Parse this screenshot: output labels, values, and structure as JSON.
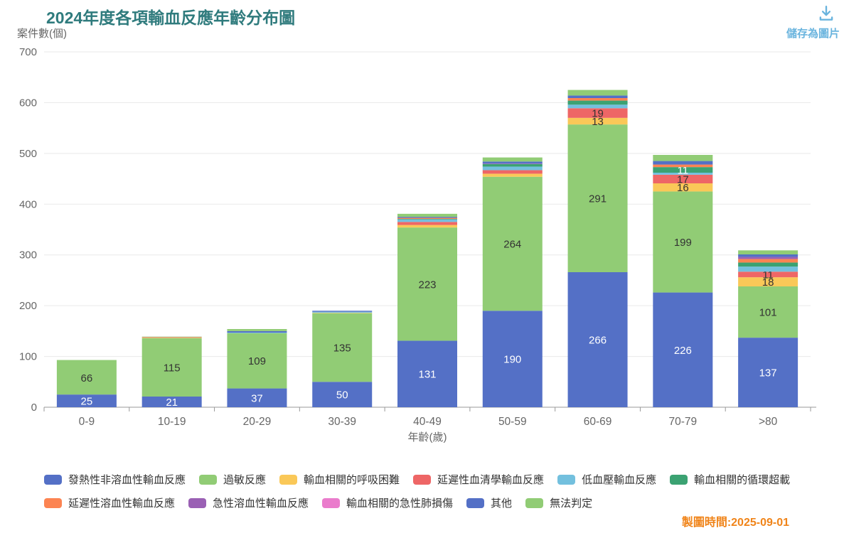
{
  "header": {
    "title": "2024年度各項輸血反應年齡分布圖",
    "save_button_label": "儲存為圖片",
    "timestamp_label": "製圖時間:",
    "timestamp_value": "2025-09-01"
  },
  "colors": {
    "title": "#2f7b7d",
    "save": "#6ab4de",
    "timestamp": "#f08419",
    "axis_text": "#666666",
    "grid_line": "#e9e9e9",
    "axis_line": "#999999",
    "bar_label_dark": "#333333",
    "bar_label_light": "#ffffff"
  },
  "chart_data": {
    "type": "bar",
    "stacked": true,
    "title": "2024年度各項輸血反應年齡分布圖",
    "xlabel": "年齡(歲)",
    "ylabel": "案件數(個)",
    "ylim": [
      0,
      700
    ],
    "ytick_interval": 100,
    "grid": true,
    "legend_position": "bottom",
    "categories": [
      "0-9",
      "10-19",
      "20-29",
      "30-39",
      "40-49",
      "50-59",
      "60-69",
      "70-79",
      ">80"
    ],
    "series": [
      {
        "name": "發熱性非溶血性輸血反應",
        "color": "#5470c6",
        "label_text": "#ffffff",
        "show_labels": true,
        "values": [
          25,
          21,
          37,
          50,
          131,
          190,
          266,
          226,
          137
        ]
      },
      {
        "name": "過敏反應",
        "color": "#91cc75",
        "label_text": "#333333",
        "show_labels": true,
        "values": [
          66,
          115,
          109,
          135,
          223,
          264,
          291,
          199,
          101
        ]
      },
      {
        "name": "輸血相關的呼吸困難",
        "color": "#fac858",
        "label_text": "#333333",
        "show_labels": true,
        "values": [
          0,
          1,
          0,
          1,
          5,
          6,
          13,
          16,
          18
        ]
      },
      {
        "name": "延遲性血清學輸血反應",
        "color": "#ee6666",
        "label_text": "#333333",
        "show_labels": true,
        "values": [
          0,
          1,
          0,
          0,
          6,
          7,
          19,
          17,
          11
        ]
      },
      {
        "name": "低血壓輸血反應",
        "color": "#73c0de",
        "label_text": "#333333",
        "show_labels": false,
        "values": [
          0,
          0,
          1,
          2,
          5,
          7,
          7,
          4,
          10
        ]
      },
      {
        "name": "輸血相關的循環超載",
        "color": "#3ba272",
        "label_text": "#ffffff",
        "show_labels": true,
        "values": [
          0,
          0,
          0,
          0,
          1,
          5,
          8,
          11,
          8
        ]
      },
      {
        "name": "延遲性溶血性輸血反應",
        "color": "#fc8452",
        "label_text": "#333333",
        "show_labels": false,
        "values": [
          0,
          0,
          0,
          0,
          2,
          0,
          5,
          5,
          7
        ]
      },
      {
        "name": "急性溶血性輸血反應",
        "color": "#9a60b4",
        "label_text": "#ffffff",
        "show_labels": false,
        "values": [
          0,
          0,
          0,
          0,
          0,
          1,
          0,
          0,
          4
        ]
      },
      {
        "name": "輸血相關的急性肺損傷",
        "color": "#ea7ccc",
        "label_text": "#333333",
        "show_labels": false,
        "values": [
          0,
          0,
          0,
          0,
          0,
          0,
          0,
          0,
          0
        ]
      },
      {
        "name": "其他",
        "color": "#5470c6",
        "label_text": "#ffffff",
        "show_labels": false,
        "values": [
          0,
          0,
          3,
          2,
          2,
          4,
          5,
          7,
          5
        ]
      },
      {
        "name": "無法判定",
        "color": "#91cc75",
        "label_text": "#333333",
        "show_labels": false,
        "values": [
          2,
          1,
          4,
          0,
          6,
          8,
          11,
          12,
          8
        ]
      }
    ],
    "label_min_value": 11,
    "bar_totals": [
      93,
      139,
      154,
      190,
      381,
      492,
      625,
      497,
      309
    ]
  },
  "legend": {
    "rows": [
      [
        0,
        1,
        2,
        3,
        4,
        5
      ],
      [
        6,
        7,
        8,
        9,
        10
      ]
    ]
  }
}
